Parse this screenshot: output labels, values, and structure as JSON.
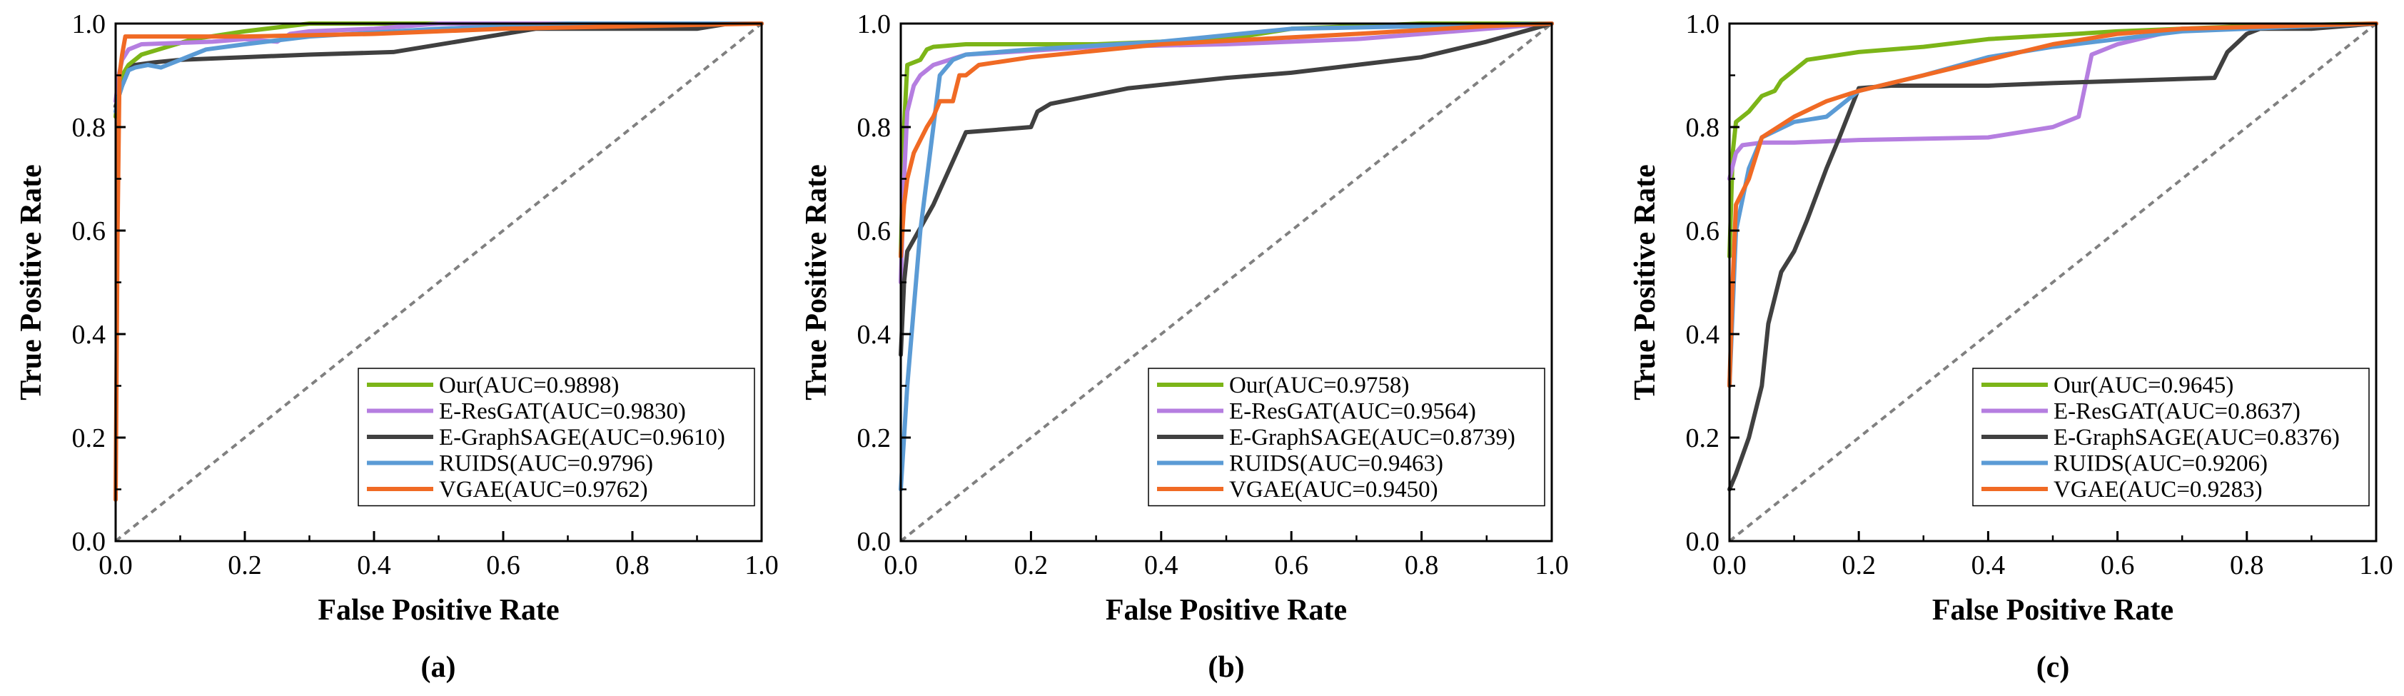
{
  "colors": {
    "Our": "#7cb518",
    "E-ResGAT": "#b57ee0",
    "E-GraphSAGE": "#404040",
    "RUIDS": "#5b9bd5",
    "VGAE": "#f06a24",
    "diagonal": "#808080"
  },
  "chart_data": [
    {
      "type": "line",
      "caption": "(a)",
      "xlabel": "False Positive Rate",
      "ylabel": "True Positive Rate",
      "xlim": [
        0,
        1
      ],
      "ylim": [
        0,
        1
      ],
      "xticks": [
        "0.0",
        "0.2",
        "0.4",
        "0.6",
        "0.8",
        "1.0"
      ],
      "yticks": [
        "0.0",
        "0.2",
        "0.4",
        "0.6",
        "0.8",
        "1.0"
      ],
      "legend_position": "bottom-right",
      "series": [
        {
          "name": "Our",
          "label": "Our(AUC=0.9898)",
          "x": [
            0,
            0.005,
            0.01,
            0.02,
            0.04,
            0.08,
            0.12,
            0.2,
            0.3,
            0.5,
            0.7,
            1.0
          ],
          "y": [
            0.82,
            0.88,
            0.9,
            0.92,
            0.94,
            0.955,
            0.97,
            0.985,
            1.0,
            1.0,
            1.0,
            1.0
          ]
        },
        {
          "name": "E-ResGAT",
          "label": "E-ResGAT(AUC=0.9830)",
          "x": [
            0,
            0.005,
            0.01,
            0.02,
            0.04,
            0.15,
            0.2,
            0.25,
            0.27,
            0.3,
            0.4,
            0.5,
            1.0
          ],
          "y": [
            0.85,
            0.9,
            0.93,
            0.95,
            0.96,
            0.965,
            0.97,
            0.965,
            0.98,
            0.985,
            0.99,
            1.0,
            1.0
          ]
        },
        {
          "name": "E-GraphSAGE",
          "label": "E-GraphSAGE(AUC=0.9610)",
          "x": [
            0,
            0.005,
            0.01,
            0.02,
            0.03,
            0.06,
            0.1,
            0.2,
            0.3,
            0.43,
            0.65,
            0.9,
            0.95,
            1.0
          ],
          "y": [
            0.84,
            0.86,
            0.88,
            0.91,
            0.92,
            0.925,
            0.93,
            0.935,
            0.94,
            0.945,
            0.99,
            0.99,
            1.0,
            1.0
          ]
        },
        {
          "name": "RUIDS",
          "label": "RUIDS(AUC=0.9796)",
          "x": [
            0,
            0.005,
            0.01,
            0.02,
            0.03,
            0.05,
            0.07,
            0.1,
            0.14,
            0.2,
            0.3,
            0.5,
            0.7,
            1.0
          ],
          "y": [
            0.83,
            0.86,
            0.88,
            0.91,
            0.915,
            0.92,
            0.915,
            0.93,
            0.95,
            0.96,
            0.975,
            0.99,
            1.0,
            1.0
          ]
        },
        {
          "name": "VGAE",
          "label": "VGAE(AUC=0.9762)",
          "x": [
            0,
            0.003,
            0.006,
            0.01,
            0.015,
            0.1,
            0.2,
            0.4,
            0.5,
            0.6,
            1.0
          ],
          "y": [
            0.08,
            0.6,
            0.9,
            0.94,
            0.975,
            0.975,
            0.975,
            0.98,
            0.985,
            0.99,
            1.0
          ]
        }
      ]
    },
    {
      "type": "line",
      "caption": "(b)",
      "xlabel": "False Positive Rate",
      "ylabel": "True Positive Rate",
      "xlim": [
        0,
        1
      ],
      "ylim": [
        0,
        1
      ],
      "xticks": [
        "0.0",
        "0.2",
        "0.4",
        "0.6",
        "0.8",
        "1.0"
      ],
      "yticks": [
        "0.0",
        "0.2",
        "0.4",
        "0.6",
        "0.8",
        "1.0"
      ],
      "legend_position": "bottom-right",
      "series": [
        {
          "name": "Our",
          "label": "Our(AUC=0.9758)",
          "x": [
            0,
            0.005,
            0.01,
            0.03,
            0.04,
            0.05,
            0.1,
            0.3,
            0.5,
            0.6,
            0.8,
            1.0
          ],
          "y": [
            0.55,
            0.8,
            0.92,
            0.93,
            0.95,
            0.955,
            0.96,
            0.96,
            0.97,
            0.99,
            1.0,
            1.0
          ]
        },
        {
          "name": "E-ResGAT",
          "label": "E-ResGAT(AUC=0.9564)",
          "x": [
            0,
            0.005,
            0.01,
            0.02,
            0.03,
            0.05,
            0.1,
            0.3,
            0.5,
            0.7,
            0.9,
            1.0
          ],
          "y": [
            0.5,
            0.7,
            0.83,
            0.88,
            0.9,
            0.92,
            0.94,
            0.955,
            0.96,
            0.97,
            0.99,
            1.0
          ]
        },
        {
          "name": "E-GraphSAGE",
          "label": "E-GraphSAGE(AUC=0.8739)",
          "x": [
            0,
            0.005,
            0.01,
            0.05,
            0.1,
            0.2,
            0.21,
            0.23,
            0.35,
            0.5,
            0.6,
            0.7,
            0.8,
            0.9,
            1.0
          ],
          "y": [
            0.36,
            0.5,
            0.56,
            0.65,
            0.79,
            0.8,
            0.83,
            0.845,
            0.875,
            0.895,
            0.905,
            0.92,
            0.935,
            0.965,
            1.0
          ]
        },
        {
          "name": "RUIDS",
          "label": "RUIDS(AUC=0.9463)",
          "x": [
            0,
            0.01,
            0.02,
            0.03,
            0.05,
            0.06,
            0.08,
            0.1,
            0.2,
            0.4,
            0.6,
            1.0
          ],
          "y": [
            0.1,
            0.3,
            0.45,
            0.6,
            0.8,
            0.9,
            0.93,
            0.94,
            0.95,
            0.965,
            0.99,
            1.0
          ]
        },
        {
          "name": "VGAE",
          "label": "VGAE(AUC=0.9450)",
          "x": [
            0,
            0.005,
            0.01,
            0.02,
            0.04,
            0.05,
            0.06,
            0.08,
            0.09,
            0.1,
            0.12,
            0.2,
            0.4,
            0.7,
            0.9,
            1.0
          ],
          "y": [
            0.55,
            0.65,
            0.7,
            0.75,
            0.8,
            0.82,
            0.85,
            0.85,
            0.9,
            0.9,
            0.92,
            0.935,
            0.96,
            0.98,
            0.995,
            1.0
          ]
        }
      ]
    },
    {
      "type": "line",
      "caption": "(c)",
      "xlabel": "False Positive Rate",
      "ylabel": "True Positive Rate",
      "xlim": [
        0,
        1
      ],
      "ylim": [
        0,
        1
      ],
      "xticks": [
        "0.0",
        "0.2",
        "0.4",
        "0.6",
        "0.8",
        "1.0"
      ],
      "yticks": [
        "0.0",
        "0.2",
        "0.4",
        "0.6",
        "0.8",
        "1.0"
      ],
      "legend_position": "bottom-right",
      "series": [
        {
          "name": "Our",
          "label": "Our(AUC=0.9645)",
          "x": [
            0,
            0.005,
            0.01,
            0.03,
            0.05,
            0.07,
            0.08,
            0.1,
            0.12,
            0.2,
            0.3,
            0.4,
            0.6,
            0.8,
            1.0
          ],
          "y": [
            0.55,
            0.75,
            0.81,
            0.83,
            0.86,
            0.87,
            0.89,
            0.91,
            0.93,
            0.945,
            0.955,
            0.97,
            0.985,
            0.995,
            1.0
          ]
        },
        {
          "name": "E-ResGAT",
          "label": "E-ResGAT(AUC=0.8637)",
          "x": [
            0,
            0.01,
            0.02,
            0.05,
            0.1,
            0.2,
            0.4,
            0.5,
            0.54,
            0.56,
            0.6,
            0.65,
            0.7,
            0.8,
            1.0
          ],
          "y": [
            0.7,
            0.75,
            0.765,
            0.77,
            0.77,
            0.775,
            0.78,
            0.8,
            0.82,
            0.94,
            0.96,
            0.975,
            0.99,
            0.99,
            1.0
          ]
        },
        {
          "name": "E-GraphSAGE",
          "label": "E-GraphSAGE(AUC=0.8376)",
          "x": [
            0,
            0.01,
            0.03,
            0.05,
            0.06,
            0.08,
            0.1,
            0.12,
            0.15,
            0.17,
            0.2,
            0.25,
            0.4,
            0.5,
            0.75,
            0.77,
            0.8,
            0.82,
            0.9,
            1.0
          ],
          "y": [
            0.1,
            0.13,
            0.2,
            0.3,
            0.42,
            0.52,
            0.56,
            0.62,
            0.72,
            0.78,
            0.875,
            0.88,
            0.88,
            0.885,
            0.895,
            0.945,
            0.98,
            0.99,
            0.99,
            1.0
          ]
        },
        {
          "name": "RUIDS",
          "label": "RUIDS(AUC=0.9206)",
          "x": [
            0,
            0.01,
            0.03,
            0.05,
            0.1,
            0.15,
            0.2,
            0.3,
            0.4,
            0.5,
            0.6,
            0.7,
            1.0
          ],
          "y": [
            0.3,
            0.6,
            0.72,
            0.78,
            0.81,
            0.82,
            0.87,
            0.9,
            0.935,
            0.955,
            0.97,
            0.985,
            1.0
          ]
        },
        {
          "name": "VGAE",
          "label": "VGAE(AUC=0.9283)",
          "x": [
            0,
            0.005,
            0.01,
            0.03,
            0.05,
            0.1,
            0.15,
            0.2,
            0.3,
            0.4,
            0.5,
            0.6,
            0.7,
            1.0
          ],
          "y": [
            0.3,
            0.5,
            0.65,
            0.7,
            0.78,
            0.82,
            0.85,
            0.87,
            0.9,
            0.93,
            0.96,
            0.98,
            0.99,
            1.0
          ]
        }
      ]
    }
  ]
}
